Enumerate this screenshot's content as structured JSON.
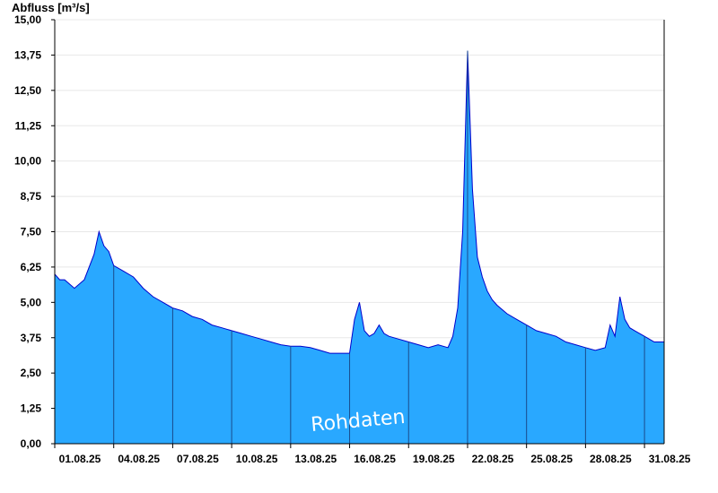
{
  "chart_data": {
    "type": "area",
    "ylabel": "Abfluss [m³/s]",
    "watermark": "Rohdaten",
    "ylim": [
      0,
      15
    ],
    "xlim_days": [
      "01.08.25",
      "01.09.25"
    ],
    "yticks": [
      "0,00",
      "1,25",
      "2,50",
      "3,75",
      "5,00",
      "6,25",
      "7,50",
      "8,75",
      "10,00",
      "11,25",
      "12,50",
      "13,75",
      "15,00"
    ],
    "ytick_values": [
      0,
      1.25,
      2.5,
      3.75,
      5,
      6.25,
      7.5,
      8.75,
      10,
      11.25,
      12.5,
      13.75,
      15
    ],
    "xticks": [
      "01.08.25",
      "04.08.25",
      "07.08.25",
      "10.08.25",
      "13.08.25",
      "16.08.25",
      "19.08.25",
      "22.08.25",
      "25.08.25",
      "28.08.25",
      "31.08.25"
    ],
    "grid": "horizontal",
    "fill_color": "#29a8ff",
    "line_color": "#0000cc",
    "series": [
      {
        "x": [
          "01.08.25 00:00",
          "01.08.25 06:00",
          "01.08.25 12:00",
          "02.08.25 00:00",
          "02.08.25 12:00",
          "03.08.25 00:00",
          "03.08.25 06:00",
          "03.08.25 12:00",
          "03.08.25 18:00",
          "04.08.25 00:00",
          "04.08.25 12:00",
          "05.08.25 00:00",
          "05.08.25 12:00",
          "06.08.25 00:00",
          "06.08.25 12:00",
          "07.08.25 00:00",
          "07.08.25 12:00",
          "08.08.25 00:00",
          "08.08.25 12:00",
          "09.08.25 00:00",
          "09.08.25 12:00",
          "10.08.25 00:00",
          "10.08.25 12:00",
          "11.08.25 00:00",
          "11.08.25 12:00",
          "12.08.25 00:00",
          "12.08.25 12:00",
          "13.08.25 00:00",
          "13.08.25 12:00",
          "14.08.25 00:00",
          "14.08.25 12:00",
          "15.08.25 00:00",
          "15.08.25 12:00",
          "16.08.25 00:00",
          "16.08.25 06:00",
          "16.08.25 12:00",
          "16.08.25 18:00",
          "17.08.25 00:00",
          "17.08.25 06:00",
          "17.08.25 12:00",
          "17.08.25 18:00",
          "18.08.25 00:00",
          "18.08.25 12:00",
          "19.08.25 00:00",
          "19.08.25 12:00",
          "20.08.25 00:00",
          "20.08.25 12:00",
          "21.08.25 00:00",
          "21.08.25 06:00",
          "21.08.25 12:00",
          "21.08.25 18:00",
          "22.08.25 00:00",
          "22.08.25 06:00",
          "22.08.25 12:00",
          "22.08.25 18:00",
          "23.08.25 00:00",
          "23.08.25 06:00",
          "23.08.25 12:00",
          "24.08.25 00:00",
          "24.08.25 12:00",
          "25.08.25 00:00",
          "25.08.25 12:00",
          "26.08.25 00:00",
          "26.08.25 12:00",
          "27.08.25 00:00",
          "27.08.25 12:00",
          "28.08.25 00:00",
          "28.08.25 12:00",
          "29.08.25 00:00",
          "29.08.25 06:00",
          "29.08.25 12:00",
          "29.08.25 18:00",
          "30.08.25 00:00",
          "30.08.25 06:00",
          "30.08.25 12:00",
          "31.08.25 00:00",
          "31.08.25 12:00",
          "01.09.25 00:00"
        ],
        "values": [
          6.0,
          5.8,
          5.8,
          5.5,
          5.8,
          6.7,
          7.5,
          7.0,
          6.8,
          6.3,
          6.1,
          5.9,
          5.5,
          5.2,
          5.0,
          4.8,
          4.7,
          4.5,
          4.4,
          4.2,
          4.1,
          4.0,
          3.9,
          3.8,
          3.7,
          3.6,
          3.5,
          3.45,
          3.45,
          3.4,
          3.3,
          3.2,
          3.2,
          3.2,
          4.4,
          5.0,
          4.0,
          3.8,
          3.9,
          4.2,
          3.9,
          3.8,
          3.7,
          3.6,
          3.5,
          3.4,
          3.5,
          3.4,
          3.8,
          4.8,
          7.5,
          13.9,
          9.0,
          6.6,
          5.9,
          5.4,
          5.1,
          4.9,
          4.6,
          4.4,
          4.2,
          4.0,
          3.9,
          3.8,
          3.6,
          3.5,
          3.4,
          3.3,
          3.4,
          4.2,
          3.8,
          5.2,
          4.4,
          4.1,
          4.0,
          3.8,
          3.6,
          3.6
        ]
      }
    ]
  }
}
